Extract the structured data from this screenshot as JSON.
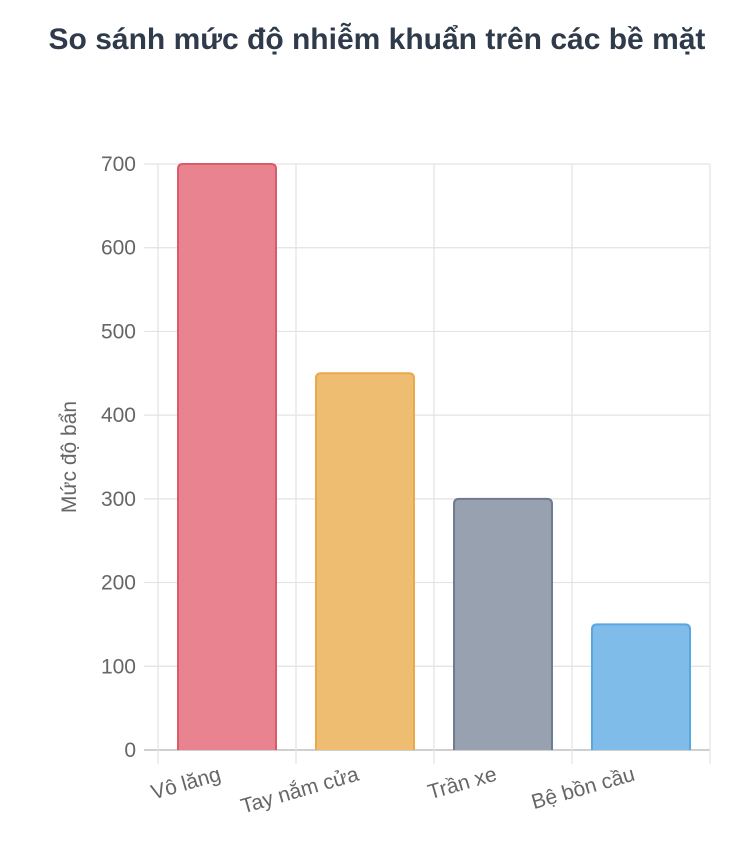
{
  "chart_data": {
    "type": "bar",
    "title": "So sánh mức độ nhiễm khuẩn trên các bề mặt",
    "xlabel": "",
    "ylabel": "Mức độ bẩn",
    "categories": [
      "Vô lăng",
      "Tay nắm cửa",
      "Trần xe",
      "Bệ bồn cầu"
    ],
    "values": [
      700,
      450,
      300,
      150
    ],
    "ylim": [
      0,
      700
    ],
    "yticks": [
      0,
      100,
      200,
      300,
      400,
      500,
      600,
      700
    ],
    "grid": true,
    "legend": "none",
    "colors": {
      "fill": [
        "#e8838f",
        "#efbd72",
        "#97a1b0",
        "#7fbcea"
      ],
      "stroke": [
        "#d95a6b",
        "#e8a94b",
        "#6f7c8f",
        "#5aa6e0"
      ]
    }
  }
}
